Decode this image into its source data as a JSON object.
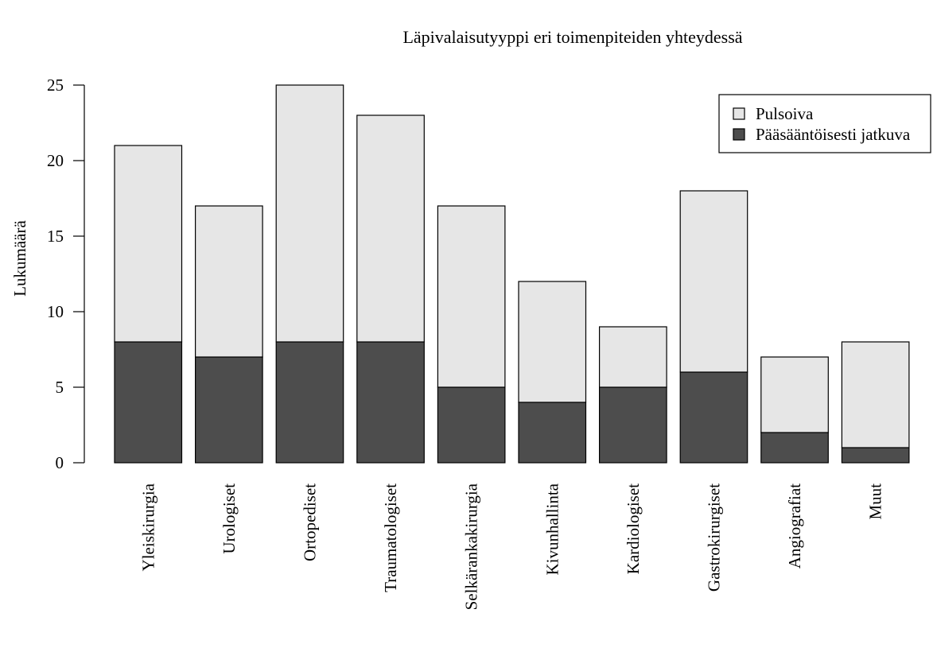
{
  "chart_data": {
    "type": "bar",
    "stacked": true,
    "title": "Läpivalaisutyyppi eri toimenpiteiden yhteydessä",
    "xlabel": "",
    "ylabel": "Lukumäärä",
    "ylim": [
      0,
      25
    ],
    "yticks": [
      "0",
      "5",
      "10",
      "15",
      "20",
      "25"
    ],
    "grid": false,
    "legend_position": "top-right",
    "categories": [
      "Yleiskirurgia",
      "Urologiset",
      "Ortopediset",
      "Traumatologiset",
      "Selkärankakirurgia",
      "Kivunhallinta",
      "Kardiologiset",
      "Gastrokirurgiset",
      "Angiografiat",
      "Muut"
    ],
    "series": [
      {
        "name": "Pääsääntöisesti jatkuva",
        "color": "#4d4d4d",
        "values": [
          8,
          7,
          8,
          8,
          5,
          4,
          5,
          6,
          2,
          1
        ]
      },
      {
        "name": "Pulsoiva",
        "color": "#e6e6e6",
        "values": [
          13,
          10,
          17,
          15,
          12,
          8,
          4,
          12,
          5,
          7
        ]
      }
    ],
    "legend_order": [
      "Pulsoiva",
      "Pääsääntöisesti jatkuva"
    ]
  }
}
